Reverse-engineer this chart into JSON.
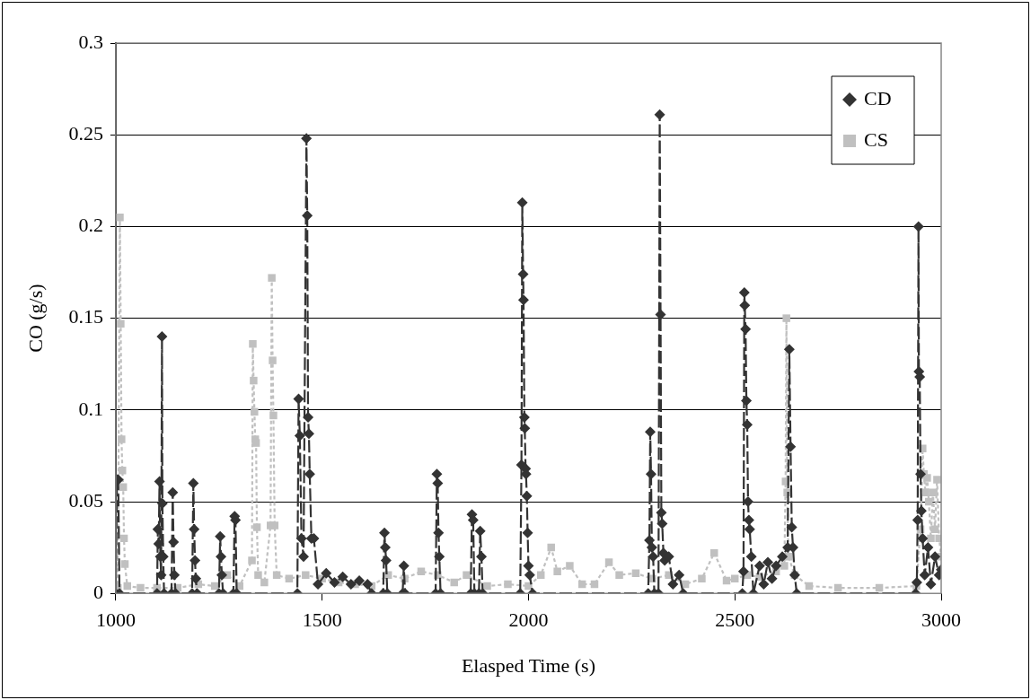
{
  "chart_data": {
    "type": "line",
    "xlabel": "Elasped Time (s)",
    "ylabel": "CO (g/s)",
    "xlim": [
      1000,
      3000
    ],
    "xticks": [
      1000,
      1500,
      2000,
      2500,
      3000
    ],
    "ylim": [
      0,
      0.3
    ],
    "yticks": [
      0,
      0.05,
      0.1,
      0.15,
      0.2,
      0.25,
      0.3
    ],
    "grid": "y",
    "legend": "top right",
    "series": [
      {
        "name": "CD",
        "color": "#333333",
        "marker": "diamond",
        "line_style": "dashed",
        "x": [
          1000,
          1003,
          1006,
          1009,
          1100,
          1102,
          1104,
          1106,
          1108,
          1110,
          1112,
          1113,
          1115,
          1117,
          1135,
          1138,
          1140,
          1142,
          1145,
          1185,
          1188,
          1190,
          1192,
          1194,
          1197,
          1250,
          1253,
          1255,
          1257,
          1260,
          1285,
          1288,
          1290,
          1293,
          1440,
          1443,
          1446,
          1450,
          1455,
          1462,
          1464,
          1466,
          1468,
          1470,
          1474,
          1480,
          1490,
          1510,
          1530,
          1550,
          1570,
          1590,
          1610,
          1620,
          1648,
          1651,
          1653,
          1655,
          1658,
          1695,
          1698,
          1701,
          1775,
          1778,
          1780,
          1782,
          1784,
          1787,
          1860,
          1863,
          1866,
          1869,
          1880,
          1883,
          1886,
          1889,
          1980,
          1983,
          1985,
          1987,
          1988,
          1990,
          1991,
          1993,
          1994,
          1996,
          1998,
          2000,
          2003,
          2010,
          2290,
          2293,
          2295,
          2297,
          2299,
          2302,
          2305,
          2315,
          2318,
          2320,
          2322,
          2324,
          2327,
          2330,
          2340,
          2350,
          2365,
          2375,
          2518,
          2521,
          2523,
          2524,
          2526,
          2528,
          2530,
          2532,
          2534,
          2536,
          2540,
          2545,
          2560,
          2570,
          2580,
          2590,
          2600,
          2615,
          2628,
          2632,
          2635,
          2638,
          2641,
          2645,
          2650,
          2938,
          2941,
          2943,
          2945,
          2946,
          2948,
          2950,
          2952,
          2955,
          2960,
          2968,
          2975,
          2985,
          2995,
          3000
        ],
        "values": [
          0,
          0.062,
          0.062,
          0,
          0,
          0.035,
          0.027,
          0.061,
          0.02,
          0.01,
          0.14,
          0.049,
          0.02,
          0,
          0,
          0.055,
          0.028,
          0.01,
          0,
          0,
          0.06,
          0.035,
          0.018,
          0.008,
          0,
          0,
          0.031,
          0.02,
          0.01,
          0,
          0,
          0.042,
          0.04,
          0,
          0,
          0.106,
          0.086,
          0.03,
          0.02,
          0.248,
          0.206,
          0.096,
          0.087,
          0.065,
          0.03,
          0.03,
          0.005,
          0.011,
          0.006,
          0.009,
          0.005,
          0.007,
          0.005,
          0,
          0,
          0.033,
          0.025,
          0.018,
          0,
          0,
          0.015,
          0,
          0,
          0.065,
          0.06,
          0.033,
          0.02,
          0,
          0,
          0.043,
          0.04,
          0,
          0,
          0.034,
          0.02,
          0,
          0,
          0.07,
          0.213,
          0.174,
          0.16,
          0.096,
          0.09,
          0.068,
          0.065,
          0.053,
          0.033,
          0.015,
          0.01,
          0,
          0,
          0.029,
          0.088,
          0.065,
          0.025,
          0.02,
          0,
          0,
          0.261,
          0.152,
          0.044,
          0.038,
          0.022,
          0.018,
          0.02,
          0.005,
          0.01,
          0,
          0,
          0.012,
          0.164,
          0.157,
          0.144,
          0.105,
          0.092,
          0.05,
          0.04,
          0.035,
          0.02,
          0,
          0.015,
          0.005,
          0.017,
          0.008,
          0.015,
          0.02,
          0.025,
          0.133,
          0.08,
          0.036,
          0.025,
          0.01,
          0,
          0,
          0.006,
          0.04,
          0.2,
          0.121,
          0.118,
          0.065,
          0.045,
          0.03,
          0.01,
          0.025,
          0.005,
          0.02,
          0.01,
          0.013
        ]
      },
      {
        "name": "CS",
        "color": "#c0c0c0",
        "marker": "square",
        "line_style": "dotted",
        "x": [
          1000,
          1005,
          1010,
          1012,
          1014,
          1016,
          1018,
          1020,
          1022,
          1028,
          1060,
          1100,
          1150,
          1200,
          1240,
          1270,
          1300,
          1330,
          1332,
          1334,
          1336,
          1338,
          1340,
          1342,
          1345,
          1360,
          1375,
          1378,
          1380,
          1382,
          1385,
          1390,
          1420,
          1460,
          1500,
          1540,
          1580,
          1620,
          1660,
          1700,
          1740,
          1780,
          1820,
          1850,
          1900,
          1950,
          2000,
          2030,
          2055,
          2070,
          2100,
          2130,
          2160,
          2195,
          2220,
          2260,
          2300,
          2340,
          2380,
          2420,
          2450,
          2480,
          2500,
          2530,
          2560,
          2600,
          2620,
          2623,
          2625,
          2627,
          2630,
          2645,
          2680,
          2750,
          2850,
          2940,
          2950,
          2955,
          2958,
          2962,
          2966,
          2970,
          2975,
          2980,
          2985,
          2990,
          2995,
          3000
        ],
        "values": [
          0.004,
          0.003,
          0.205,
          0.147,
          0.084,
          0.067,
          0.058,
          0.03,
          0.016,
          0.004,
          0.003,
          0.003,
          0.003,
          0.005,
          0.004,
          0.01,
          0.004,
          0.018,
          0.136,
          0.116,
          0.099,
          0.084,
          0.082,
          0.036,
          0.01,
          0.006,
          0.037,
          0.172,
          0.127,
          0.097,
          0.037,
          0.01,
          0.008,
          0.01,
          0.008,
          0.006,
          0.005,
          0.004,
          0.01,
          0.008,
          0.012,
          0.01,
          0.006,
          0.01,
          0.004,
          0.005,
          0.004,
          0.01,
          0.025,
          0.012,
          0.015,
          0.005,
          0.005,
          0.017,
          0.01,
          0.011,
          0.008,
          0.01,
          0.005,
          0.008,
          0.022,
          0.007,
          0.008,
          0.01,
          0.009,
          0.012,
          0.015,
          0.061,
          0.15,
          0.055,
          0.02,
          0.01,
          0.004,
          0.003,
          0.003,
          0.004,
          0.035,
          0.079,
          0.065,
          0.055,
          0.063,
          0.05,
          0.03,
          0.055,
          0.035,
          0.062,
          0.03,
          0.02
        ]
      }
    ]
  }
}
